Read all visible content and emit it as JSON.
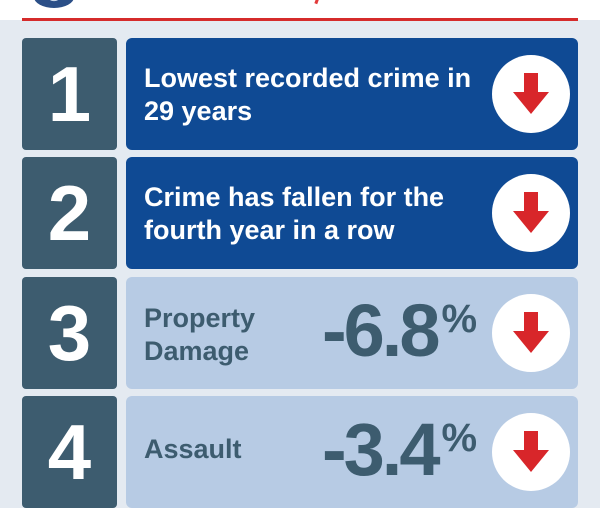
{
  "rows": [
    {
      "number": "1",
      "headline": "Lowest recorded crime in 29 years",
      "icon": "down-arrow-icon"
    },
    {
      "number": "2",
      "headline": "Crime has fallen for the fourth year in a row",
      "icon": "down-arrow-icon"
    },
    {
      "number": "3",
      "label": "Property Damage",
      "value": "-6.8",
      "unit": "%",
      "icon": "down-arrow-icon"
    },
    {
      "number": "4",
      "label": "Assault",
      "value": "-3.4",
      "unit": "%",
      "icon": "down-arrow-icon"
    }
  ],
  "colors": {
    "dark_panel": "#0f4a94",
    "light_panel": "#b7cbe4",
    "number_box": "#3d5c6f",
    "arrow": "#d8262a",
    "rule": "#d52b2b"
  }
}
